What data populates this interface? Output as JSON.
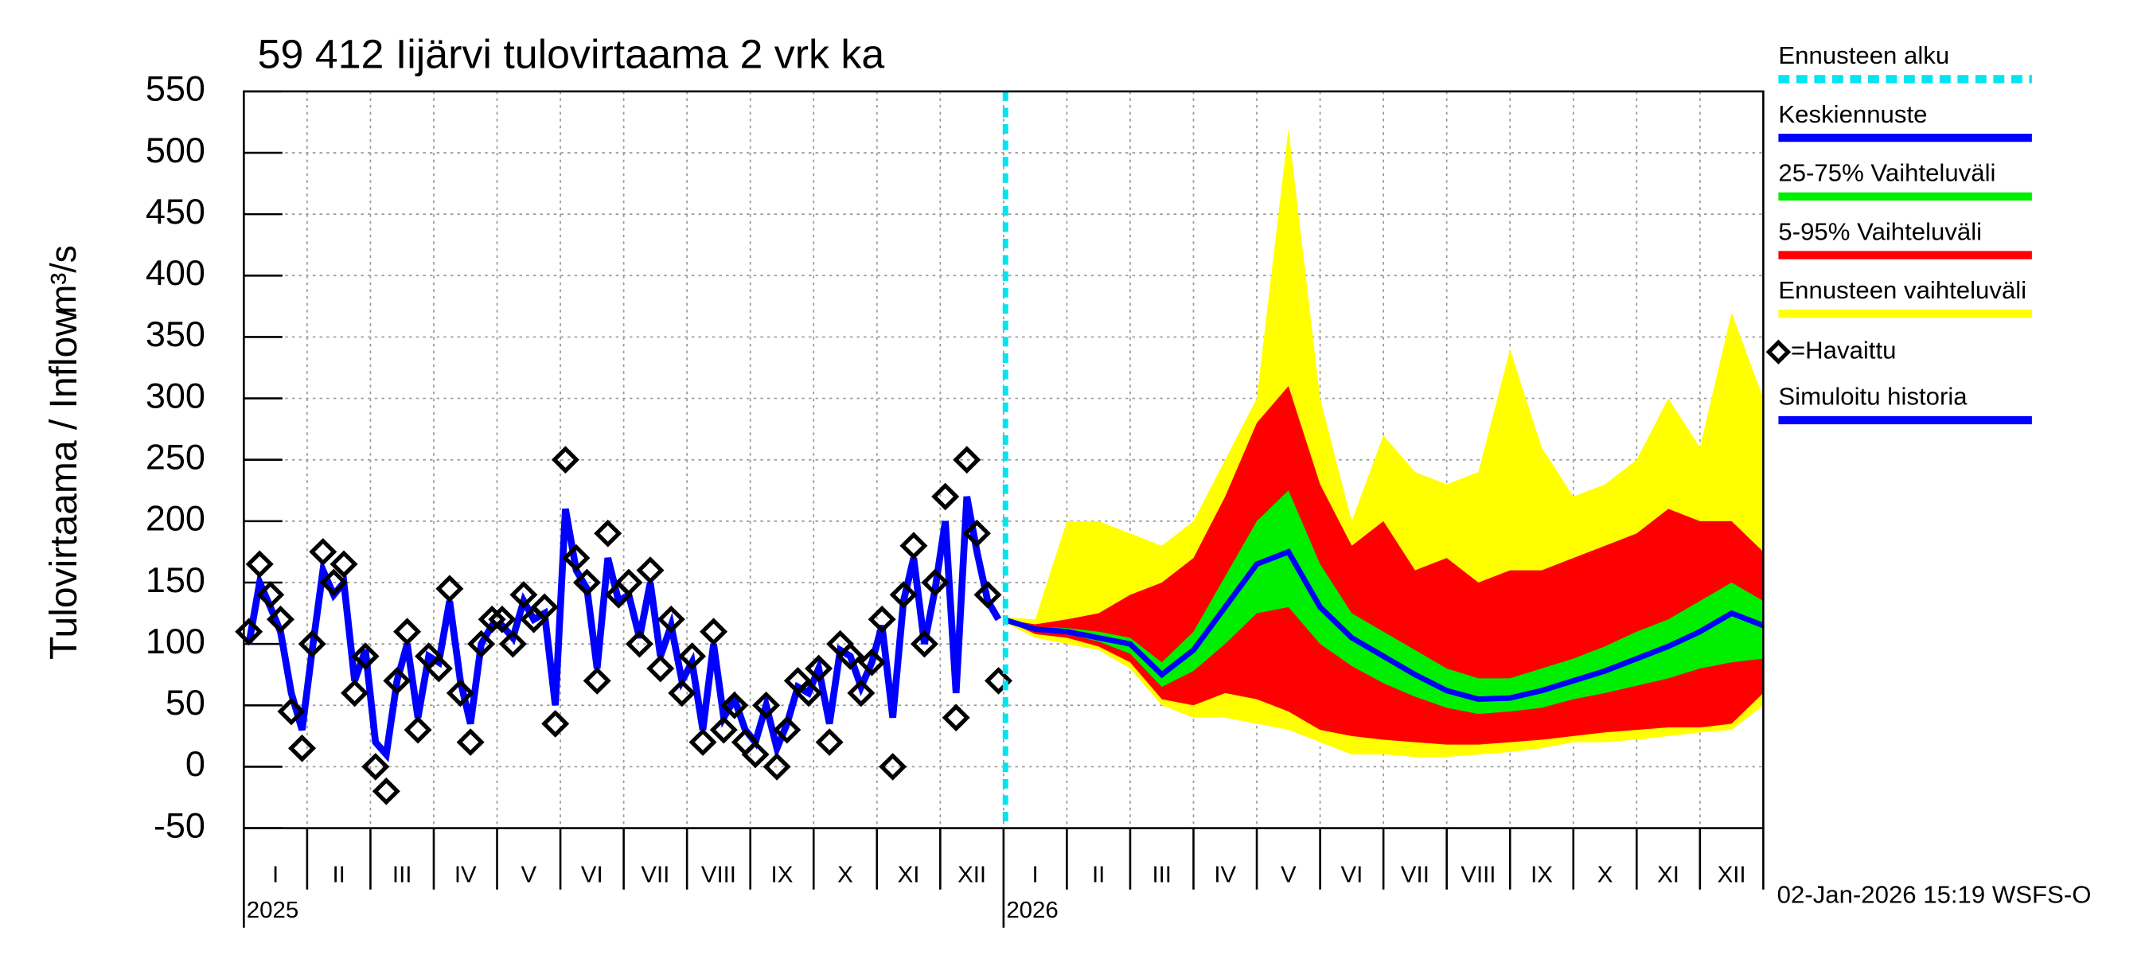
{
  "chart_data": {
    "type": "forecast",
    "title": "59 412 Iijärvi tulovirtaama 2 vrk ka",
    "y_label": "Tulovirtaama / Inflow",
    "y_unit": "m³/s",
    "footer": "02-Jan-2026 15:19 WSFS-O",
    "ylim": [
      -50,
      550
    ],
    "yticks": [
      -50,
      0,
      50,
      100,
      150,
      200,
      250,
      300,
      350,
      400,
      450,
      500,
      550
    ],
    "xlim": [
      0,
      24
    ],
    "xticks": [
      0,
      1,
      2,
      3,
      4,
      5,
      6,
      7,
      8,
      9,
      10,
      11,
      12,
      13,
      14,
      15,
      16,
      17,
      18,
      19,
      20,
      21,
      22,
      23,
      24
    ],
    "grid": true,
    "month_labels": [
      "I",
      "II",
      "III",
      "IV",
      "V",
      "VI",
      "VII",
      "VIII",
      "IX",
      "X",
      "XI",
      "XII",
      "I",
      "II",
      "III",
      "IV",
      "V",
      "VI",
      "VII",
      "VIII",
      "IX",
      "X",
      "XI",
      "XII"
    ],
    "years": [
      {
        "label": "2025",
        "x": 0
      },
      {
        "label": "2026",
        "x": 12
      }
    ],
    "forecast_start": {
      "name": "Ennusteen alku",
      "x": 12.03,
      "color": "#00e5ee"
    },
    "history_x": [
      0.08,
      0.25,
      0.42,
      0.58,
      0.75,
      0.92,
      1.08,
      1.25,
      1.42,
      1.58,
      1.75,
      1.92,
      2.08,
      2.25,
      2.42,
      2.58,
      2.75,
      2.92,
      3.08,
      3.25,
      3.42,
      3.58,
      3.75,
      3.92,
      4.08,
      4.25,
      4.42,
      4.58,
      4.75,
      4.92,
      5.08,
      5.25,
      5.42,
      5.58,
      5.75,
      5.92,
      6.08,
      6.25,
      6.42,
      6.58,
      6.75,
      6.92,
      7.08,
      7.25,
      7.42,
      7.58,
      7.75,
      7.92,
      8.08,
      8.25,
      8.42,
      8.58,
      8.75,
      8.92,
      9.08,
      9.25,
      9.42,
      9.58,
      9.75,
      9.92,
      10.08,
      10.25,
      10.42,
      10.58,
      10.75,
      10.92,
      11.08,
      11.25,
      11.42,
      11.58,
      11.75,
      11.92
    ],
    "observed": {
      "name": "=Havaittu",
      "color": "#000000",
      "values": [
        110,
        165,
        140,
        120,
        45,
        15,
        100,
        175,
        150,
        165,
        60,
        90,
        0,
        -20,
        70,
        110,
        30,
        90,
        80,
        145,
        60,
        20,
        100,
        120,
        120,
        100,
        140,
        120,
        130,
        35,
        250,
        170,
        150,
        70,
        190,
        140,
        150,
        100,
        160,
        80,
        120,
        60,
        90,
        20,
        110,
        30,
        50,
        20,
        10,
        50,
        0,
        30,
        70,
        60,
        80,
        20,
        100,
        90,
        60,
        85,
        120,
        0,
        140,
        180,
        100,
        150,
        220,
        40,
        250,
        190,
        140,
        70
      ]
    },
    "simulated": {
      "name": "Simuloitu historia",
      "color": "#0000ff",
      "values": [
        100,
        150,
        130,
        110,
        60,
        30,
        95,
        160,
        140,
        150,
        70,
        95,
        20,
        10,
        70,
        100,
        40,
        90,
        85,
        135,
        70,
        35,
        100,
        115,
        115,
        105,
        135,
        120,
        125,
        50,
        210,
        160,
        145,
        80,
        170,
        135,
        140,
        105,
        150,
        90,
        115,
        70,
        85,
        30,
        100,
        40,
        55,
        30,
        20,
        50,
        15,
        35,
        65,
        60,
        80,
        35,
        95,
        90,
        65,
        85,
        115,
        40,
        135,
        170,
        100,
        145,
        200,
        60,
        220,
        175,
        135,
        120
      ]
    },
    "forecast_x": [
      12,
      12.5,
      13,
      13.5,
      14,
      14.5,
      15,
      15.5,
      16,
      16.5,
      17,
      17.5,
      18,
      18.5,
      19,
      19.5,
      20,
      20.5,
      21,
      21.5,
      22,
      22.5,
      23,
      23.5,
      24
    ],
    "bands": [
      {
        "name": "Ennusteen vaihteluväli",
        "color": "#ffff00",
        "lower": [
          118,
          105,
          100,
          95,
          80,
          50,
          40,
          40,
          35,
          30,
          20,
          10,
          10,
          8,
          8,
          10,
          12,
          15,
          20,
          20,
          22,
          25,
          28,
          30,
          50
        ],
        "upper": [
          122,
          120,
          200,
          200,
          190,
          180,
          200,
          250,
          300,
          520,
          300,
          200,
          270,
          240,
          230,
          240,
          340,
          260,
          220,
          230,
          250,
          300,
          260,
          370,
          300
        ]
      },
      {
        "name": "5-95% Vaihteluväli",
        "color": "#ff0000",
        "lower": [
          120,
          108,
          105,
          98,
          85,
          55,
          50,
          60,
          55,
          45,
          30,
          25,
          22,
          20,
          18,
          18,
          20,
          22,
          25,
          28,
          30,
          32,
          32,
          35,
          60
        ],
        "upper": [
          120,
          116,
          120,
          125,
          140,
          150,
          170,
          220,
          280,
          310,
          230,
          180,
          200,
          160,
          170,
          150,
          160,
          160,
          170,
          180,
          190,
          210,
          200,
          200,
          175
        ]
      },
      {
        "name": "25-75% Vaihteluväli",
        "color": "#00ee00",
        "lower": [
          120,
          110,
          108,
          102,
          92,
          65,
          78,
          100,
          125,
          130,
          100,
          82,
          68,
          57,
          48,
          43,
          45,
          48,
          55,
          60,
          66,
          72,
          80,
          85,
          88
        ],
        "upper": [
          120,
          114,
          113,
          110,
          105,
          85,
          110,
          155,
          200,
          225,
          165,
          125,
          110,
          95,
          80,
          72,
          72,
          80,
          88,
          98,
          110,
          120,
          135,
          150,
          135
        ]
      }
    ],
    "median": {
      "name": "Keskiennuste",
      "color": "#0000ff",
      "values": [
        120,
        112,
        110,
        105,
        100,
        75,
        95,
        130,
        165,
        175,
        130,
        105,
        90,
        75,
        62,
        55,
        56,
        62,
        70,
        78,
        88,
        98,
        110,
        125,
        115
      ]
    }
  }
}
